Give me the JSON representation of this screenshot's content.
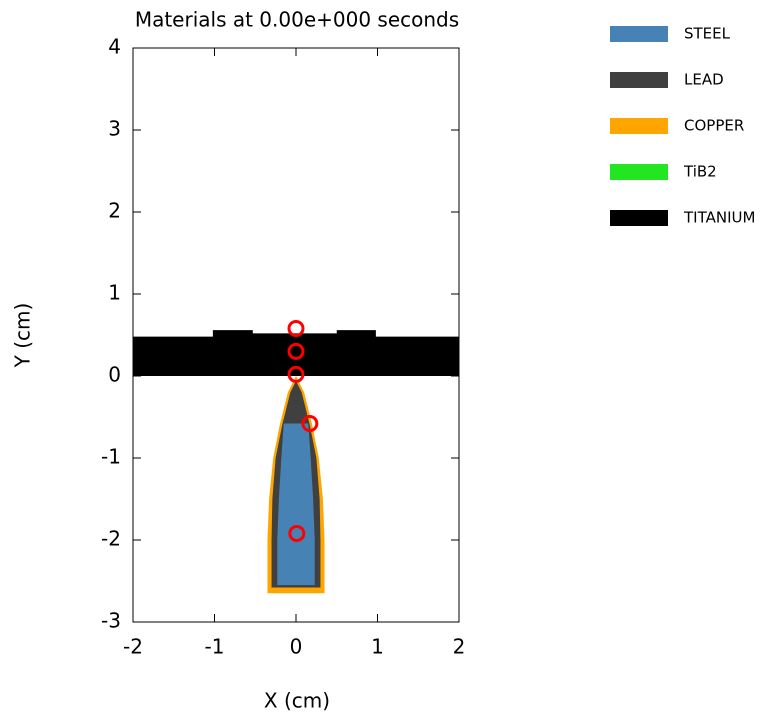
{
  "chart_data": {
    "type": "polygon",
    "title": "Materials at 0.00e+000 seconds",
    "x_label": "X (cm)",
    "y_label": "Y (cm)",
    "xlim": [
      -2,
      2
    ],
    "ylim": [
      -3,
      4
    ],
    "xticks": [
      -2,
      -1,
      0,
      1,
      2
    ],
    "yticks": [
      -3,
      -2,
      -1,
      0,
      1,
      2,
      3,
      4
    ],
    "series": [
      {
        "name": "STEEL",
        "color": "#4682b4",
        "x": [
          0.15,
          0.18,
          0.21,
          0.23,
          0.23,
          -0.23,
          -0.23,
          -0.21,
          -0.18,
          -0.15
        ],
        "y": [
          -0.58,
          -1.0,
          -1.5,
          -2.0,
          -2.55,
          -2.55,
          -2.0,
          -1.5,
          -1.0,
          -0.58
        ]
      },
      {
        "name": "LEAD",
        "color": "#404040",
        "x": [
          0,
          0.07,
          0.17,
          0.25,
          0.29,
          0.3,
          0.3,
          -0.3,
          -0.3,
          -0.29,
          -0.25,
          -0.17,
          -0.07
        ],
        "y": [
          -0.06,
          -0.2,
          -0.6,
          -1.0,
          -1.5,
          -2.0,
          -2.58,
          -2.58,
          -2.0,
          -1.5,
          -1.0,
          -0.6,
          -0.2
        ]
      },
      {
        "name": "COPPER",
        "color": "#ffa500",
        "x": [
          0,
          0.1,
          0.2,
          0.28,
          0.33,
          0.35,
          0.35,
          -0.35,
          -0.35,
          -0.33,
          -0.28,
          -0.2,
          -0.1
        ],
        "y": [
          0,
          -0.2,
          -0.6,
          -1.0,
          -1.5,
          -2.0,
          -2.65,
          -2.65,
          -2.0,
          -1.5,
          -1.0,
          -0.6,
          -0.2
        ]
      },
      {
        "name": "TiB2",
        "color": "#22e622",
        "x": [],
        "y": []
      },
      {
        "name": "TITANIUM",
        "color": "#000000",
        "x": [
          -2,
          -1.02,
          -1.02,
          -0.53,
          -0.53,
          0.5,
          0.5,
          0.98,
          0.98,
          2,
          2,
          -2
        ],
        "y": [
          0.48,
          0.48,
          0.56,
          0.56,
          0.52,
          0.52,
          0.56,
          0.56,
          0.48,
          0.48,
          0,
          0
        ]
      }
    ],
    "draw_order": [
      2,
      1,
      0,
      4
    ],
    "tracers": {
      "color": "#ff0000",
      "x": [
        0,
        0,
        0,
        0.17,
        0.01
      ],
      "y": [
        0.58,
        0.3,
        0.02,
        -0.58,
        -1.92
      ]
    }
  }
}
